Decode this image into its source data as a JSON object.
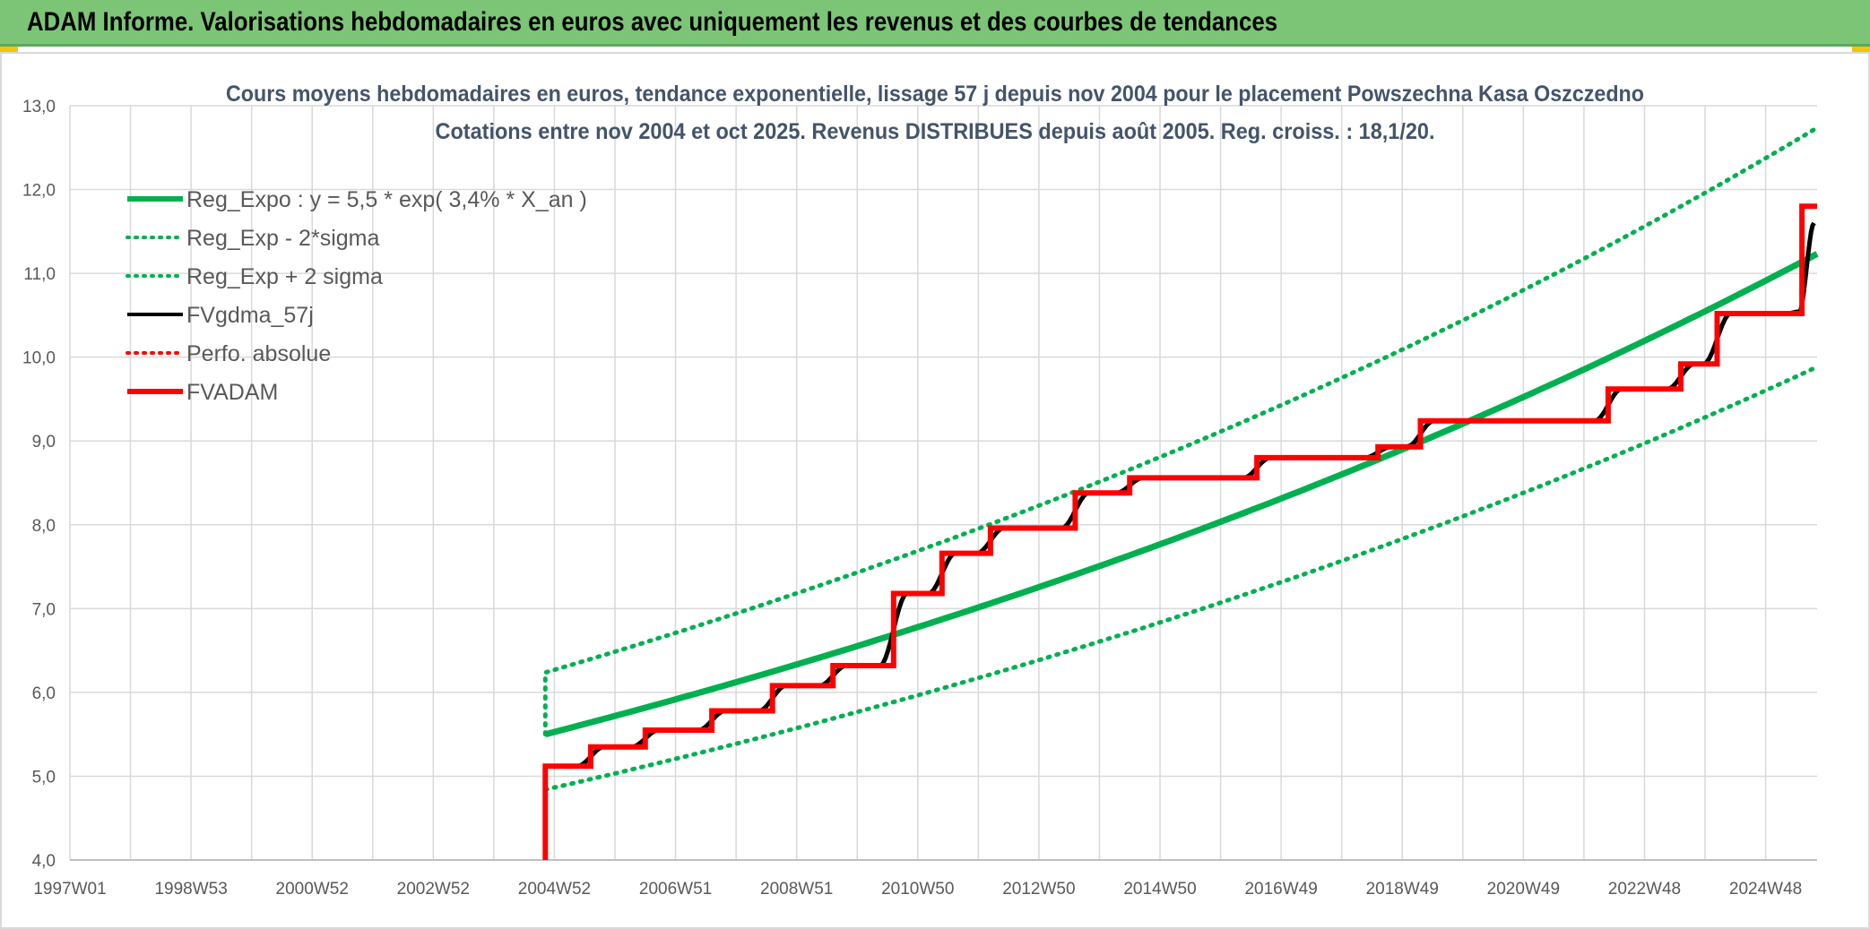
{
  "banner": {
    "title": "ADAM Informe. Valorisations hebdomadaires en euros avec uniquement les revenus et des courbes de tendances"
  },
  "colors": {
    "banner_bg": "#7cc576",
    "reg_green": "#00b050",
    "red": "#ff0000",
    "black": "#000000",
    "grid": "#d9d9d9",
    "accent_yellow": "#f1c40f"
  },
  "chart_data": {
    "type": "line",
    "title_lines": [
      "Cours moyens hebdomadaires en euros, tendance exponentielle, lissage 57 j depuis nov 2004 pour le placement Powszechna Kasa Oszczedno",
      "Cotations entre nov 2004 et oct 2025. Revenus DISTRIBUES depuis août 2005. Reg. croiss. : 18,1/20."
    ],
    "x_tick_labels": [
      "1997W01",
      "1998W53",
      "2000W52",
      "2002W52",
      "2004W52",
      "2006W51",
      "2008W51",
      "2010W50",
      "2012W50",
      "2014W50",
      "2016W49",
      "2018W49",
      "2020W49",
      "2022W48",
      "2024W48"
    ],
    "x_range": [
      1997.0,
      2025.85
    ],
    "y_ticks": [
      "4,0",
      "5,0",
      "6,0",
      "7,0",
      "8,0",
      "9,0",
      "10,0",
      "11,0",
      "12,0",
      "13,0"
    ],
    "ylim": [
      4.0,
      13.0
    ],
    "grid": true,
    "legend_position": "top-left",
    "legend": [
      {
        "label": "Reg_Expo : y = 5,5 * exp( 3,4% *  X_an )",
        "color": "#00b050",
        "style": "solid",
        "width": 6
      },
      {
        "label": "Reg_Exp - 2*sigma",
        "color": "#00b050",
        "style": "dotted",
        "width": 4
      },
      {
        "label": "Reg_Exp + 2 sigma",
        "color": "#00b050",
        "style": "dotted",
        "width": 4
      },
      {
        "label": "FVgdma_57j",
        "color": "#000000",
        "style": "solid",
        "width": 4
      },
      {
        "label": "Perfo. absolue",
        "color": "#ff0000",
        "style": "dotted",
        "width": 4
      },
      {
        "label": "FVADAM",
        "color": "#ff0000",
        "style": "solid",
        "width": 6
      }
    ],
    "regression": {
      "start": 2004.85,
      "end": 2025.85,
      "a": 5.5,
      "rate": 0.034,
      "lower_factor": 0.88,
      "upper_factor": 1.134
    },
    "fvadam_steps": [
      {
        "x": 2004.85,
        "y": 5.12
      },
      {
        "x": 2005.6,
        "y": 5.35
      },
      {
        "x": 2006.5,
        "y": 5.55
      },
      {
        "x": 2007.6,
        "y": 5.78
      },
      {
        "x": 2008.6,
        "y": 6.08
      },
      {
        "x": 2009.6,
        "y": 6.32
      },
      {
        "x": 2010.6,
        "y": 7.18
      },
      {
        "x": 2011.4,
        "y": 7.66
      },
      {
        "x": 2012.2,
        "y": 7.96
      },
      {
        "x": 2013.6,
        "y": 8.38
      },
      {
        "x": 2014.5,
        "y": 8.56
      },
      {
        "x": 2016.6,
        "y": 8.8
      },
      {
        "x": 2018.6,
        "y": 8.93
      },
      {
        "x": 2019.3,
        "y": 9.24
      },
      {
        "x": 2022.4,
        "y": 9.62
      },
      {
        "x": 2023.6,
        "y": 9.92
      },
      {
        "x": 2024.2,
        "y": 10.52
      },
      {
        "x": 2025.6,
        "y": 11.8
      }
    ],
    "fvadam_end_x": 2025.85,
    "fvadam_start_y": 4.0,
    "fvgdma_end_y": 11.6
  }
}
